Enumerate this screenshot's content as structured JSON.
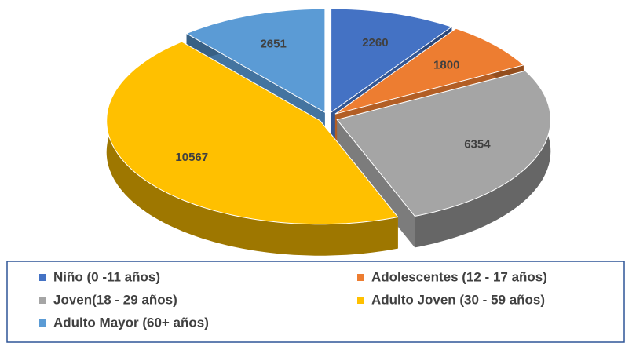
{
  "chart_data": {
    "type": "pie",
    "categories": [
      "Niño (0 -11 años)",
      "Adolescentes (12 - 17 años)",
      "Joven(18 - 29 años)",
      "Adulto Joven (30 - 59 años)",
      "Adulto Mayor (60+ años)"
    ],
    "values": [
      2260,
      1800,
      6354,
      10567,
      2651
    ],
    "colors": [
      "#4472c4",
      "#ed7d31",
      "#a5a5a5",
      "#ffc000",
      "#5b9bd5"
    ],
    "legend": "bottom"
  }
}
